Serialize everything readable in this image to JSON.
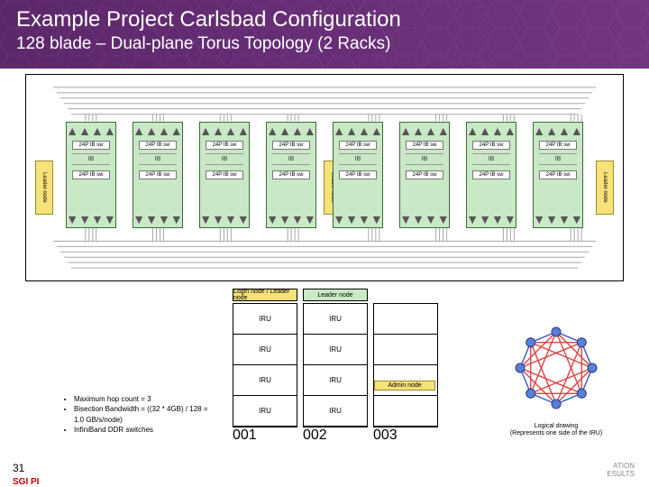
{
  "header": {
    "title": "Example Project Carlsbad Configuration",
    "subtitle": "128 blade – Dual-plane Torus Topology (2 Racks)",
    "bg_base": "#6b2e7a",
    "bg_light": "#8a4a99",
    "text_color": "#ffffff"
  },
  "top_diagram": {
    "leader_label": "Leader node",
    "leader_color": "#f7e27a",
    "blade_count": 8,
    "blade_color": "#c9e8c5",
    "port_label": "24P IB sw",
    "mid_label": "IB",
    "connection_color": "#a8a8a8"
  },
  "specs": {
    "lines": [
      "Maximum hop count = 3",
      "Bisection Bandwidth = ((32 * 4GB) / 128 = 1.0 GB/s/node)",
      "InfiniBand DDR switches"
    ]
  },
  "racks": {
    "top_labels": [
      "Login node / Leader node",
      "Leader node",
      ""
    ],
    "top_colors": [
      "#f7e27a",
      "#c9e8c5",
      ""
    ],
    "items": [
      {
        "id": "001",
        "slots": [
          "IRU",
          "IRU",
          "IRU",
          "IRU"
        ]
      },
      {
        "id": "002",
        "slots": [
          "IRU",
          "IRU",
          "IRU",
          "IRU"
        ]
      },
      {
        "id": "003",
        "slots": [
          "",
          "",
          "",
          ""
        ],
        "note": "Admin node"
      }
    ],
    "slot_label": "IRU"
  },
  "torus": {
    "caption": "Logical drawing\n(Represents one side of the IRU)",
    "node_count": 8,
    "radius": 40,
    "ring_color": "#3355cc",
    "chord_color": "#d94444",
    "node_fill": "#5a7fd6",
    "node_radius": 5
  },
  "footer": {
    "page": "31",
    "logo": "SGI PI",
    "right1": "ATION",
    "right2": "ESULTS"
  }
}
